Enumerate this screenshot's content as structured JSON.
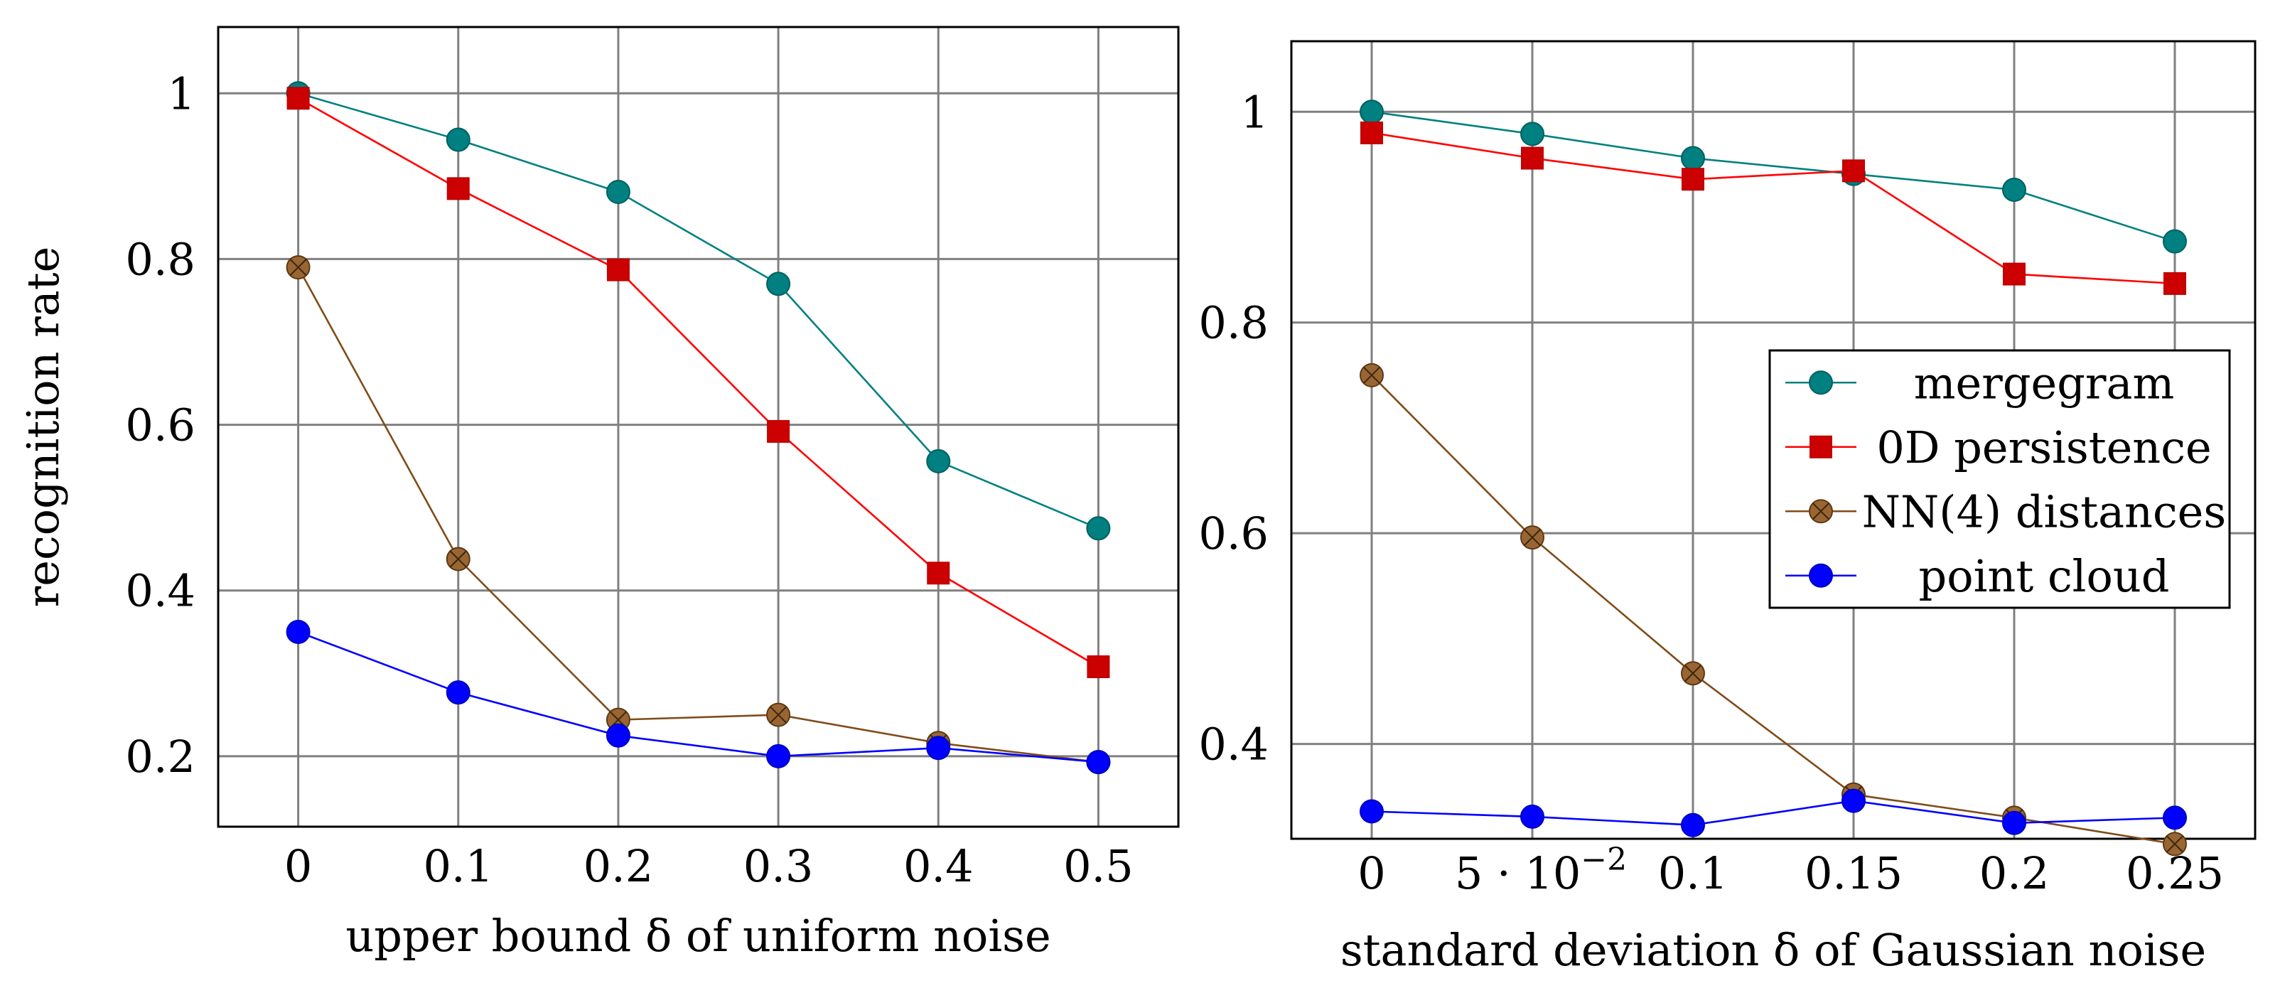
{
  "chart_data": [
    {
      "type": "line",
      "title": "",
      "xlabel": "upper bound δ of uniform noise",
      "ylabel": "recognition rate",
      "x": [
        0,
        0.1,
        0.2,
        0.3,
        0.4,
        0.5
      ],
      "xticks": [
        "0",
        "0.1",
        "0.2",
        "0.3",
        "0.4",
        "0.5"
      ],
      "yticks": [
        "0.2",
        "0.4",
        "0.6",
        "0.8",
        "1"
      ],
      "xlim": [
        -0.05,
        0.55
      ],
      "ylim": [
        0.115,
        1.08
      ],
      "grid": true,
      "series": [
        {
          "name": "mergegram",
          "color": "#008080",
          "marker": "circle",
          "values": [
            1.0,
            0.944,
            0.881,
            0.77,
            0.556,
            0.475
          ]
        },
        {
          "name": "0D persistence",
          "color": "#ff0000",
          "marker": "square",
          "values": [
            0.994,
            0.885,
            0.787,
            0.592,
            0.421,
            0.308
          ]
        },
        {
          "name": "NN(4) distances",
          "color": "#7f4c19",
          "marker": "crossed-circle",
          "values": [
            0.79,
            0.438,
            0.244,
            0.25,
            0.216,
            0.193
          ]
        },
        {
          "name": "point cloud",
          "color": "#0000ff",
          "marker": "circle",
          "values": [
            0.35,
            0.277,
            0.225,
            0.2,
            0.21,
            0.193
          ]
        }
      ]
    },
    {
      "type": "line",
      "title": "",
      "xlabel": "standard deviation δ of Gaussian noise",
      "ylabel": "",
      "x": [
        0,
        0.05,
        0.1,
        0.15,
        0.2,
        0.25
      ],
      "xticks": [
        "0",
        "5 · 10",
        "0.1",
        "0.15",
        "0.2",
        "0.25"
      ],
      "xtick_superscript": "−2",
      "yticks": [
        "0.4",
        "0.6",
        "0.8",
        "1"
      ],
      "xlim": [
        -0.025,
        0.275
      ],
      "ylim": [
        0.31,
        1.067
      ],
      "grid": true,
      "legend": "center-right",
      "series": [
        {
          "name": "mergegram",
          "color": "#008080",
          "marker": "circle",
          "values": [
            1.0,
            0.979,
            0.956,
            0.941,
            0.926,
            0.877
          ]
        },
        {
          "name": "0D persistence",
          "color": "#ff0000",
          "marker": "square",
          "values": [
            0.98,
            0.956,
            0.936,
            0.944,
            0.846,
            0.837
          ]
        },
        {
          "name": "NN(4) distances",
          "color": "#7f4c19",
          "marker": "crossed-circle",
          "values": [
            0.75,
            0.596,
            0.467,
            0.352,
            0.33,
            0.305
          ]
        },
        {
          "name": "point cloud",
          "color": "#0000ff",
          "marker": "circle",
          "values": [
            0.336,
            0.331,
            0.323,
            0.346,
            0.325,
            0.33
          ]
        }
      ]
    }
  ]
}
